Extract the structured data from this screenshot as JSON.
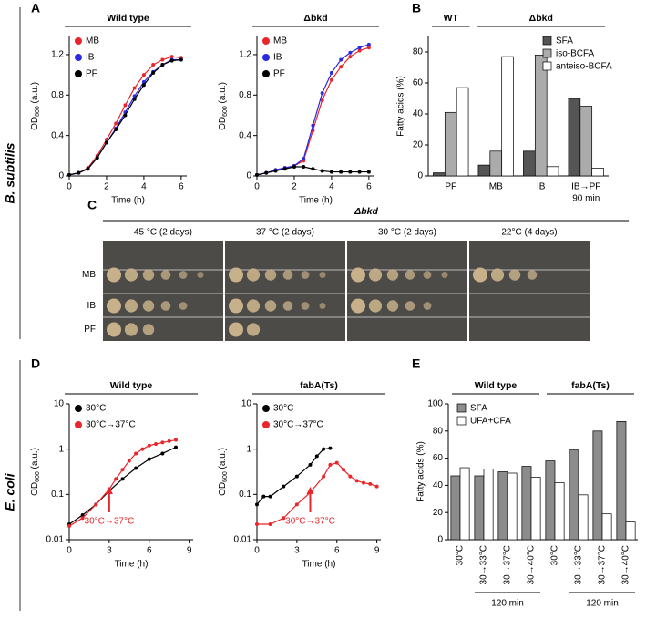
{
  "panel_letters": [
    "A",
    "B",
    "C",
    "D",
    "E"
  ],
  "side_labels": [
    "B. subtilis",
    "E. coli"
  ],
  "panel_c": {
    "title": "Δbkd",
    "conditions": [
      "45 °C (2 days)",
      "37  °C (2 days)",
      "30  °C (2 days)",
      "22°C (4 days)"
    ],
    "strains": [
      "MB",
      "IB",
      "PF"
    ]
  },
  "chart_data": [
    {
      "type": "line",
      "title": "Wild type",
      "xlabel": "Time (h)",
      "ylabel": [
        "OD",
        "600",
        " (a.u.)"
      ],
      "xlim": [
        0,
        6.3
      ],
      "ylim": [
        0,
        1.38
      ],
      "xticks": [
        0,
        2,
        4,
        6
      ],
      "yticks": [
        0,
        0.4,
        0.8,
        1.2
      ],
      "x": [
        0,
        0.5,
        1,
        1.5,
        2,
        2.5,
        3,
        3.5,
        4,
        4.5,
        5,
        5.5,
        6
      ],
      "series": [
        {
          "name": "MB",
          "color": "#e8262b",
          "values": [
            0.01,
            0.03,
            0.08,
            0.2,
            0.36,
            0.52,
            0.7,
            0.87,
            1.0,
            1.1,
            1.15,
            1.18,
            1.17
          ]
        },
        {
          "name": "IB",
          "color": "#2a2ae0",
          "values": [
            0.01,
            0.03,
            0.07,
            0.18,
            0.33,
            0.47,
            0.63,
            0.79,
            0.93,
            1.03,
            1.1,
            1.15,
            1.15
          ]
        },
        {
          "name": "PF",
          "color": "#000000",
          "values": [
            0.01,
            0.03,
            0.07,
            0.18,
            0.33,
            0.46,
            0.6,
            0.76,
            0.9,
            1.02,
            1.1,
            1.14,
            1.15
          ]
        }
      ]
    },
    {
      "type": "line",
      "title": "Δbkd",
      "xlabel": "Time (h)",
      "ylabel": [
        "OD",
        "600",
        " (a.u.)"
      ],
      "xlim": [
        0,
        6.3
      ],
      "ylim": [
        0,
        1.38
      ],
      "xticks": [
        0,
        2,
        4,
        6
      ],
      "yticks": [
        0,
        0.4,
        0.8,
        1.2
      ],
      "x": [
        0,
        0.5,
        1,
        1.5,
        2,
        2.5,
        3,
        3.5,
        4,
        4.5,
        5,
        5.5,
        6
      ],
      "series": [
        {
          "name": "MB",
          "color": "#e8262b",
          "values": [
            0.01,
            0.03,
            0.06,
            0.08,
            0.1,
            0.15,
            0.45,
            0.75,
            0.95,
            1.08,
            1.18,
            1.24,
            1.27
          ]
        },
        {
          "name": "IB",
          "color": "#2a2ae0",
          "values": [
            0.01,
            0.03,
            0.06,
            0.08,
            0.1,
            0.17,
            0.5,
            0.82,
            1.02,
            1.15,
            1.22,
            1.27,
            1.3
          ]
        },
        {
          "name": "PF",
          "color": "#000000",
          "values": [
            0.01,
            0.03,
            0.05,
            0.07,
            0.09,
            0.09,
            0.07,
            0.05,
            0.04,
            0.04,
            0.04,
            0.04,
            0.04
          ]
        }
      ]
    },
    {
      "type": "bar",
      "ylabel": "Fatty acids (%)",
      "ylim": [
        0,
        90
      ],
      "yticks": [
        0,
        20,
        40,
        60,
        80
      ],
      "group_labels": [
        "WT",
        "Δbkd"
      ],
      "sub_labels": [
        "90 min"
      ],
      "categories": [
        "PF",
        "MB",
        "IB",
        "IB→PF"
      ],
      "series": [
        {
          "name": "SFA",
          "color": "#555555",
          "values": [
            2,
            7,
            16,
            50
          ]
        },
        {
          "name": "iso-BCFA",
          "color": "#ababab",
          "values": [
            41,
            16,
            78,
            45
          ]
        },
        {
          "name": "anteiso-BCFA",
          "color": "#ffffff",
          "values": [
            57,
            77,
            6,
            5
          ]
        }
      ]
    },
    {
      "type": "line",
      "title": "Wild type",
      "xlabel": "Time (h)",
      "ylabel": [
        "OD",
        "600",
        " (a.u.)"
      ],
      "log": true,
      "xlim": [
        0,
        9.3
      ],
      "ylim": [
        0.01,
        10
      ],
      "xticks": [
        0,
        3,
        6,
        9
      ],
      "yticks": [
        0.01,
        0.1,
        1,
        10
      ],
      "annotation": {
        "text": "30°C→37°C",
        "x": 3
      },
      "series": [
        {
          "name": "30°C",
          "color": "#000000",
          "x": [
            0,
            1,
            2,
            3,
            4,
            5,
            6,
            7,
            8
          ],
          "values": [
            0.022,
            0.035,
            0.06,
            0.12,
            0.22,
            0.38,
            0.6,
            0.8,
            1.1
          ]
        },
        {
          "name": "30°C→37°C",
          "color": "#e8262b",
          "x": [
            0,
            1,
            2,
            3,
            3.5,
            4,
            4.5,
            5,
            5.5,
            6,
            6.5,
            7,
            7.5,
            8
          ],
          "values": [
            0.02,
            0.03,
            0.06,
            0.13,
            0.22,
            0.35,
            0.55,
            0.8,
            1.0,
            1.2,
            1.3,
            1.4,
            1.5,
            1.6
          ]
        }
      ]
    },
    {
      "type": "line",
      "title": "fabA(Ts)",
      "xlabel": "Time (h)",
      "ylabel": [
        "OD",
        "600",
        " (a.u.)"
      ],
      "log": true,
      "xlim": [
        0,
        9.3
      ],
      "ylim": [
        0.01,
        10
      ],
      "xticks": [
        0,
        3,
        6,
        9
      ],
      "yticks": [
        0.01,
        0.1,
        1,
        10
      ],
      "annotation": {
        "text": "30°C→37°C",
        "x": 4
      },
      "series": [
        {
          "name": "30°C",
          "color": "#000000",
          "x": [
            0,
            0.5,
            1,
            2,
            3,
            4,
            4.5,
            5,
            5.5
          ],
          "values": [
            0.06,
            0.09,
            0.09,
            0.15,
            0.25,
            0.45,
            0.7,
            1.0,
            1.05
          ]
        },
        {
          "name": "30°C→37°C",
          "color": "#e8262b",
          "x": [
            0,
            1,
            2,
            3,
            4,
            5,
            5.5,
            6,
            6.5,
            7,
            7.5,
            8,
            8.5,
            9
          ],
          "values": [
            0.022,
            0.022,
            0.03,
            0.06,
            0.11,
            0.25,
            0.45,
            0.5,
            0.35,
            0.25,
            0.2,
            0.18,
            0.17,
            0.15
          ]
        }
      ]
    },
    {
      "type": "bar",
      "ylabel": "Fatty acids (%)",
      "ylim": [
        0,
        100
      ],
      "yticks": [
        0,
        20,
        40,
        60,
        80,
        100
      ],
      "rotate_labels": true,
      "group_labels": [
        "Wild type",
        "fabA(Ts)"
      ],
      "sub_labels": [
        "120 min",
        "120 min"
      ],
      "categories": [
        "30°C",
        "30→33°C",
        "30→37°C",
        "30→40°C",
        "30°C",
        "30→33°C",
        "30→37°C",
        "30→40°C"
      ],
      "series": [
        {
          "name": "SFA",
          "color": "#8c8c8c",
          "values": [
            47,
            47,
            50,
            54,
            58,
            66,
            80,
            87
          ]
        },
        {
          "name": "UFA+CFA",
          "color": "#ffffff",
          "values": [
            53,
            52,
            49,
            46,
            42,
            33,
            19,
            13
          ]
        }
      ]
    }
  ]
}
